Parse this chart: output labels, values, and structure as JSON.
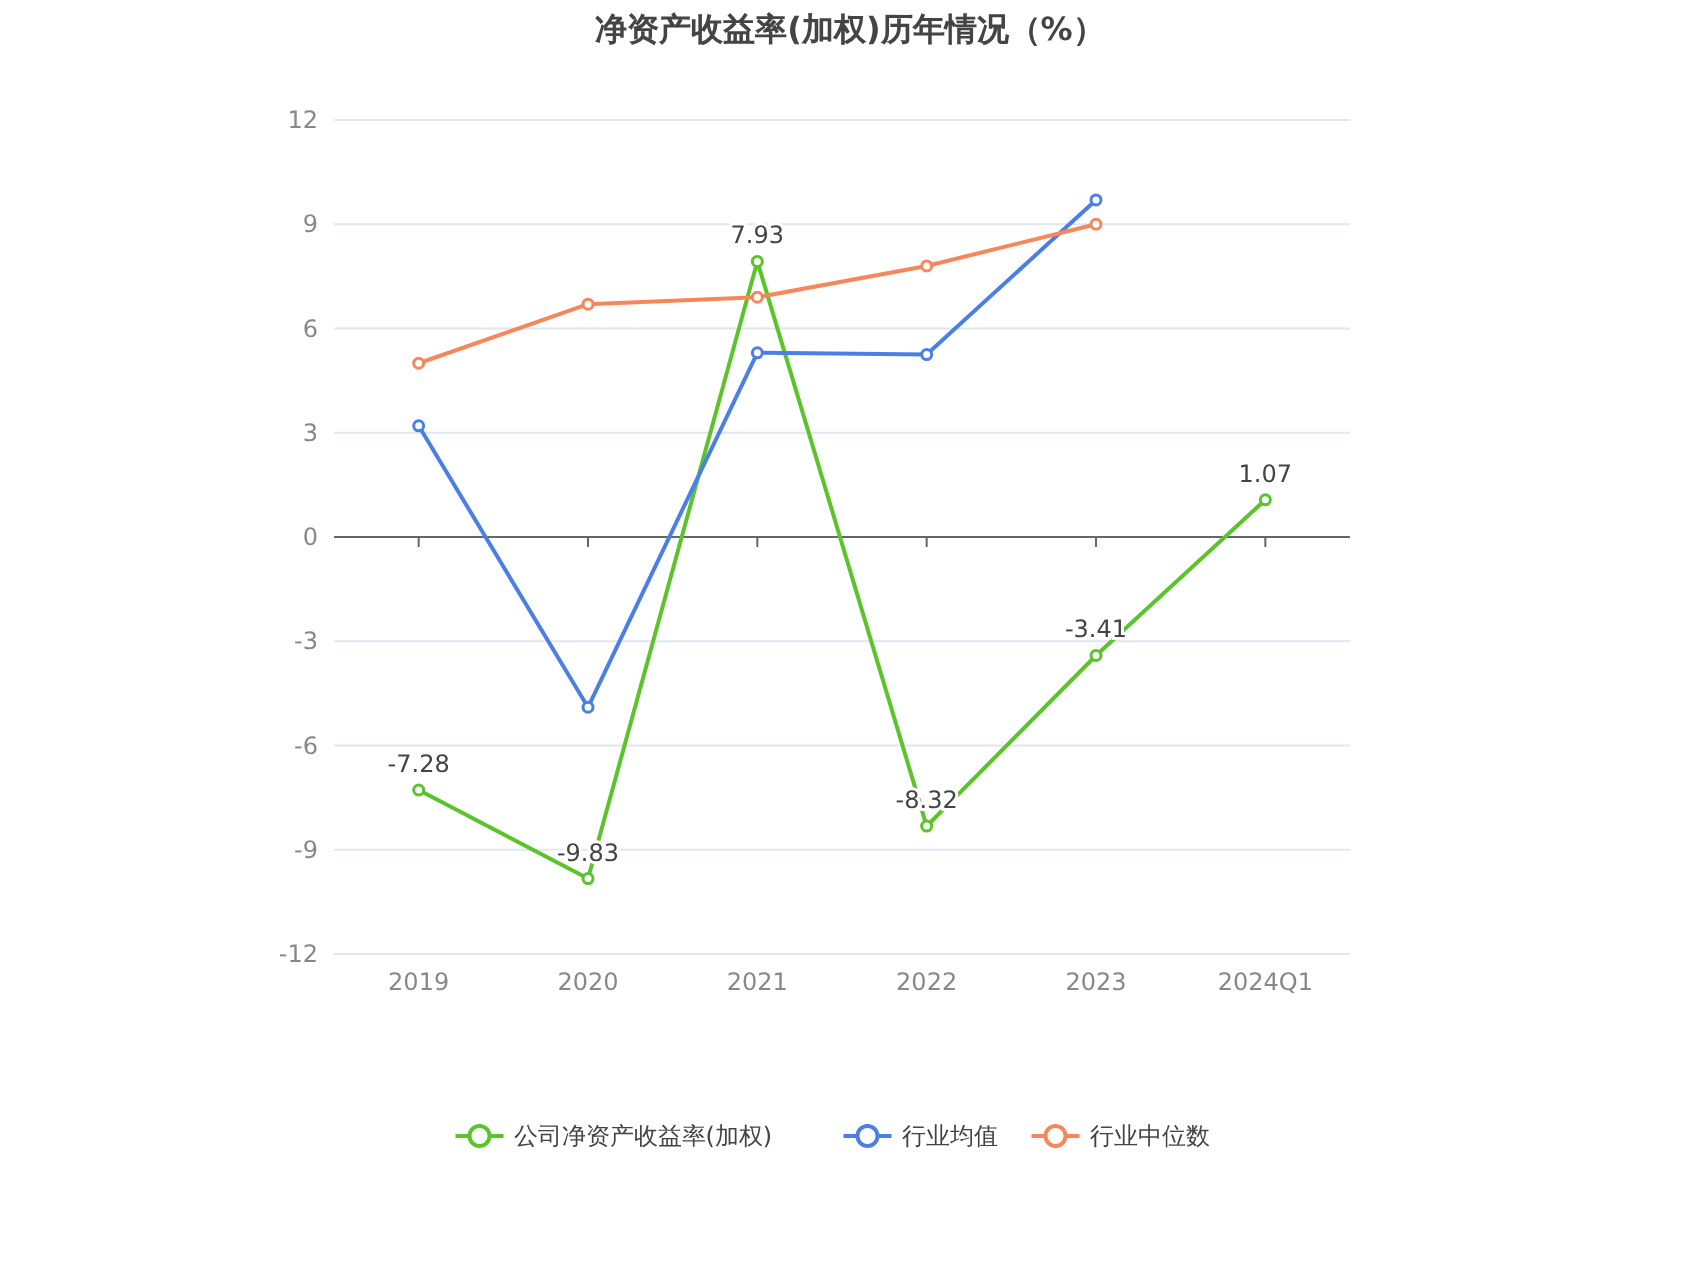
{
  "chart_data": {
    "type": "line",
    "title": "净资产收益率(加权)历年情况（%）",
    "categories": [
      "2019",
      "2020",
      "2021",
      "2022",
      "2023",
      "2024Q1"
    ],
    "series": [
      {
        "name": "公司净资产收益率(加权)",
        "color": "#5ac42a",
        "values": [
          -7.28,
          -9.83,
          7.93,
          -8.32,
          -3.41,
          1.07
        ],
        "value_labels": [
          "-7.28",
          "-9.83",
          "7.93",
          "-8.32",
          "-3.41",
          "1.07"
        ]
      },
      {
        "name": "行业均值",
        "color": "#4a7fe6",
        "values": [
          3.2,
          -4.9,
          5.3,
          5.25,
          9.7,
          null
        ]
      },
      {
        "name": "行业中位数",
        "color": "#f6875a",
        "values": [
          5.0,
          6.7,
          6.9,
          7.8,
          9.0,
          null
        ]
      }
    ],
    "ylim": [
      -12,
      12
    ],
    "yticks": [
      -12,
      -9,
      -6,
      -3,
      0,
      3,
      6,
      9,
      12
    ],
    "grid": "y",
    "legend": "bottom",
    "marker": "circle"
  }
}
